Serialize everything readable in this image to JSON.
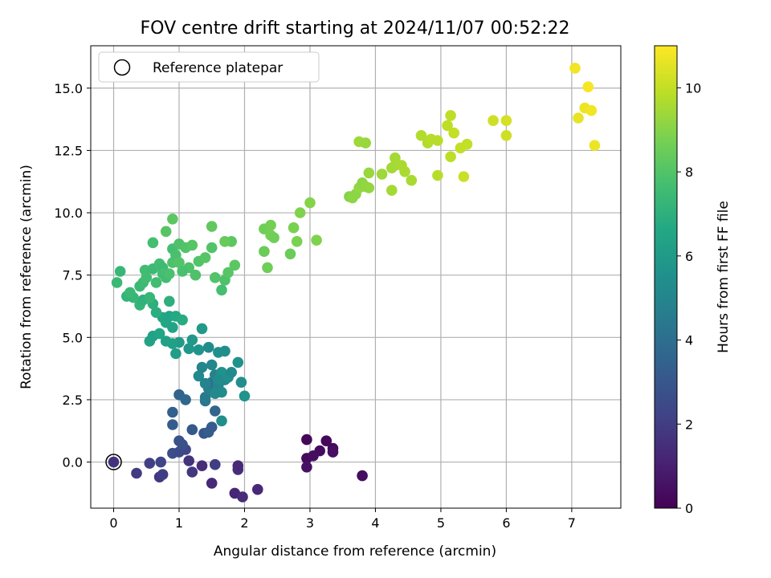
{
  "chart_data": {
    "type": "scatter",
    "title": "FOV centre drift starting at 2024/11/07 00:52:22",
    "xlabel": "Angular distance from reference (arcmin)",
    "ylabel": "Rotation from reference (arcmin)",
    "xlim": [
      -0.35,
      7.75
    ],
    "ylim": [
      -1.85,
      16.7
    ],
    "xticks": [
      0,
      1,
      2,
      3,
      4,
      5,
      6,
      7
    ],
    "xtick_labels": [
      "0",
      "1",
      "2",
      "3",
      "4",
      "5",
      "6",
      "7"
    ],
    "yticks": [
      0.0,
      2.5,
      5.0,
      7.5,
      10.0,
      12.5,
      15.0
    ],
    "ytick_labels": [
      "0.0",
      "2.5",
      "5.0",
      "7.5",
      "10.0",
      "12.5",
      "15.0"
    ],
    "grid": true,
    "legend": {
      "label": "Reference platepar",
      "placement": "upper-left"
    },
    "reference_point": [
      0,
      0
    ],
    "colorbar": {
      "label": "Hours from first FF file",
      "range": [
        0,
        11
      ],
      "ticks": [
        0,
        2,
        4,
        6,
        8,
        10
      ],
      "tick_labels": [
        "0",
        "2",
        "4",
        "6",
        "8",
        "10"
      ],
      "colormap": "viridis"
    },
    "points": [
      [
        2.95,
        0.9,
        0.2
      ],
      [
        3.25,
        0.85,
        0.25
      ],
      [
        3.35,
        0.55,
        0.3
      ],
      [
        3.15,
        0.45,
        0.35
      ],
      [
        2.95,
        0.15,
        0.3
      ],
      [
        3.05,
        0.25,
        0.4
      ],
      [
        3.35,
        0.4,
        0.45
      ],
      [
        2.95,
        -0.2,
        0.5
      ],
      [
        3.8,
        -0.55,
        0.4
      ],
      [
        0.0,
        0.0,
        1.6
      ],
      [
        0.35,
        -0.45,
        1.9
      ],
      [
        0.55,
        -0.05,
        2.1
      ],
      [
        0.7,
        -0.6,
        1.8
      ],
      [
        0.75,
        -0.5,
        2.0
      ],
      [
        0.72,
        0.0,
        2.3
      ],
      [
        0.9,
        0.35,
        2.6
      ],
      [
        1.0,
        0.4,
        2.5
      ],
      [
        1.1,
        0.5,
        2.4
      ],
      [
        1.05,
        0.7,
        2.7
      ],
      [
        1.15,
        0.05,
        1.6
      ],
      [
        1.2,
        -0.4,
        1.8
      ],
      [
        1.35,
        -0.15,
        1.4
      ],
      [
        1.5,
        -0.85,
        1.3
      ],
      [
        1.55,
        -0.1,
        2.0
      ],
      [
        1.85,
        -1.25,
        1.2
      ],
      [
        1.9,
        -0.3,
        1.5
      ],
      [
        1.9,
        -0.15,
        1.3
      ],
      [
        1.97,
        -1.4,
        1.4
      ],
      [
        2.2,
        -1.1,
        1.3
      ],
      [
        1.0,
        0.85,
        2.8
      ],
      [
        0.9,
        2.0,
        3.4
      ],
      [
        0.9,
        1.5,
        3.2
      ],
      [
        1.0,
        2.7,
        3.5
      ],
      [
        1.1,
        2.5,
        3.7
      ],
      [
        1.2,
        1.3,
        3.1
      ],
      [
        1.38,
        1.15,
        3.0
      ],
      [
        1.45,
        1.2,
        3.3
      ],
      [
        1.5,
        1.4,
        3.2
      ],
      [
        1.55,
        2.05,
        3.6
      ],
      [
        1.4,
        2.45,
        4.3
      ],
      [
        1.4,
        2.6,
        4.5
      ],
      [
        1.45,
        2.95,
        4.7
      ],
      [
        1.5,
        3.2,
        4.2
      ],
      [
        1.55,
        3.5,
        4.8
      ],
      [
        1.6,
        3.1,
        5.0
      ],
      [
        1.65,
        2.8,
        5.3
      ],
      [
        1.65,
        1.65,
        5.4
      ],
      [
        1.7,
        3.3,
        5.1
      ],
      [
        1.3,
        3.45,
        5.2
      ],
      [
        1.35,
        3.8,
        5.0
      ],
      [
        1.4,
        3.15,
        4.9
      ],
      [
        1.45,
        4.6,
        5.3
      ],
      [
        1.5,
        3.9,
        5.1
      ],
      [
        1.6,
        4.4,
        5.5
      ],
      [
        1.65,
        3.6,
        5.6
      ],
      [
        1.7,
        4.45,
        5.4
      ],
      [
        1.75,
        3.4,
        5.5
      ],
      [
        1.8,
        3.6,
        5.2
      ],
      [
        1.9,
        4.0,
        5.6
      ],
      [
        1.95,
        3.2,
        5.4
      ],
      [
        2.0,
        2.65,
        5.7
      ],
      [
        1.55,
        2.75,
        5.2
      ],
      [
        1.6,
        3.3,
        5.3
      ],
      [
        1.3,
        4.5,
        5.7
      ],
      [
        1.35,
        5.35,
        6.0
      ],
      [
        1.15,
        4.55,
        5.8
      ],
      [
        1.2,
        4.9,
        5.9
      ],
      [
        1.0,
        4.8,
        6.0
      ],
      [
        0.95,
        4.35,
        6.1
      ],
      [
        0.9,
        4.75,
        6.2
      ],
      [
        0.8,
        4.85,
        6.3
      ],
      [
        0.55,
        4.85,
        6.4
      ],
      [
        0.6,
        5.05,
        6.3
      ],
      [
        0.7,
        5.15,
        6.5
      ],
      [
        0.75,
        5.8,
        6.6
      ],
      [
        0.8,
        5.6,
        6.6
      ],
      [
        0.9,
        5.4,
        6.4
      ],
      [
        0.85,
        5.85,
        6.5
      ],
      [
        0.95,
        5.85,
        6.7
      ],
      [
        1.05,
        5.7,
        6.8
      ],
      [
        0.65,
        6.0,
        6.9
      ],
      [
        0.85,
        6.45,
        7.0
      ],
      [
        0.6,
        6.35,
        7.0
      ],
      [
        0.4,
        6.3,
        7.2
      ],
      [
        0.45,
        6.5,
        7.1
      ],
      [
        0.55,
        6.6,
        7.3
      ],
      [
        0.3,
        6.6,
        7.3
      ],
      [
        0.2,
        6.65,
        7.2
      ],
      [
        0.25,
        6.8,
        7.4
      ],
      [
        0.05,
        7.2,
        7.4
      ],
      [
        0.1,
        7.65,
        7.3
      ],
      [
        0.4,
        7.05,
        7.4
      ],
      [
        0.45,
        7.2,
        7.5
      ],
      [
        0.5,
        7.4,
        7.6
      ],
      [
        0.48,
        7.7,
        7.6
      ],
      [
        0.6,
        7.75,
        7.5
      ],
      [
        0.6,
        8.8,
        7.7
      ],
      [
        0.7,
        7.95,
        7.6
      ],
      [
        0.75,
        7.8,
        7.5
      ],
      [
        0.65,
        7.2,
        7.6
      ],
      [
        0.75,
        7.55,
        7.7
      ],
      [
        0.8,
        7.4,
        7.6
      ],
      [
        0.85,
        7.55,
        7.8
      ],
      [
        0.9,
        8.0,
        7.9
      ],
      [
        0.9,
        8.55,
        7.7
      ],
      [
        0.95,
        8.3,
        7.8
      ],
      [
        1.0,
        8.75,
        7.9
      ],
      [
        1.0,
        8.0,
        8.0
      ],
      [
        1.1,
        8.6,
        8.0
      ],
      [
        1.15,
        7.8,
        7.9
      ],
      [
        1.05,
        7.65,
        7.8
      ],
      [
        1.2,
        8.7,
        8.1
      ],
      [
        1.25,
        7.5,
        7.9
      ],
      [
        1.3,
        8.05,
        8.0
      ],
      [
        1.4,
        8.2,
        8.1
      ],
      [
        1.5,
        8.6,
        8.0
      ],
      [
        1.55,
        7.4,
        8.0
      ],
      [
        1.65,
        6.9,
        7.7
      ],
      [
        1.7,
        7.3,
        7.9
      ],
      [
        1.75,
        7.6,
        8.1
      ],
      [
        1.8,
        8.85,
        8.2
      ],
      [
        1.85,
        7.9,
        8.2
      ],
      [
        0.8,
        9.25,
        8.1
      ],
      [
        0.9,
        9.75,
        8.2
      ],
      [
        1.5,
        9.45,
        8.3
      ],
      [
        1.7,
        8.85,
        8.4
      ],
      [
        2.3,
        8.45,
        8.5
      ],
      [
        2.35,
        7.8,
        8.6
      ],
      [
        2.3,
        9.35,
        8.6
      ],
      [
        2.4,
        9.5,
        8.7
      ],
      [
        2.4,
        9.1,
        8.7
      ],
      [
        2.45,
        9.0,
        8.6
      ],
      [
        2.7,
        8.35,
        8.5
      ],
      [
        2.75,
        9.4,
        8.8
      ],
      [
        2.8,
        8.85,
        8.8
      ],
      [
        2.85,
        10.0,
        8.9
      ],
      [
        3.0,
        10.4,
        9.0
      ],
      [
        3.1,
        8.9,
        8.9
      ],
      [
        3.6,
        10.65,
        9.0
      ],
      [
        3.65,
        10.6,
        9.1
      ],
      [
        3.7,
        10.75,
        9.1
      ],
      [
        3.75,
        11.0,
        9.2
      ],
      [
        3.8,
        11.2,
        9.1
      ],
      [
        3.85,
        11.05,
        9.2
      ],
      [
        3.9,
        11.6,
        9.3
      ],
      [
        3.9,
        11.0,
        9.2
      ],
      [
        3.75,
        12.85,
        9.4
      ],
      [
        3.85,
        12.8,
        9.3
      ],
      [
        4.1,
        11.55,
        9.4
      ],
      [
        4.25,
        11.8,
        9.5
      ],
      [
        4.3,
        11.9,
        9.5
      ],
      [
        4.3,
        12.2,
        9.5
      ],
      [
        4.4,
        11.9,
        9.6
      ],
      [
        4.45,
        11.65,
        9.6
      ],
      [
        4.55,
        11.3,
        9.6
      ],
      [
        4.25,
        10.9,
        9.5
      ],
      [
        4.7,
        13.1,
        9.7
      ],
      [
        4.8,
        12.8,
        9.7
      ],
      [
        4.85,
        12.95,
        9.8
      ],
      [
        4.95,
        12.9,
        9.8
      ],
      [
        4.95,
        11.5,
        9.8
      ],
      [
        5.1,
        13.5,
        9.9
      ],
      [
        5.15,
        13.9,
        9.9
      ],
      [
        5.15,
        12.25,
        9.9
      ],
      [
        5.2,
        13.2,
        10.0
      ],
      [
        5.3,
        12.6,
        10.0
      ],
      [
        5.4,
        12.75,
        10.0
      ],
      [
        5.35,
        11.45,
        10.1
      ],
      [
        5.8,
        13.7,
        10.2
      ],
      [
        6.0,
        13.7,
        10.3
      ],
      [
        6.0,
        13.1,
        10.2
      ],
      [
        7.05,
        15.8,
        10.8
      ],
      [
        7.25,
        15.05,
        10.9
      ],
      [
        7.2,
        14.2,
        10.7
      ],
      [
        7.3,
        14.1,
        10.8
      ],
      [
        7.1,
        13.8,
        10.6
      ],
      [
        7.35,
        12.7,
        10.7
      ]
    ]
  }
}
